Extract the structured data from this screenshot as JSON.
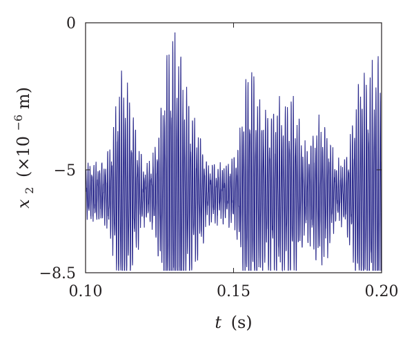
{
  "chart_data": {
    "type": "line",
    "title": "",
    "xlabel": {
      "symbol": "t",
      "unit": "(s)"
    },
    "ylabel": {
      "symbol": "x",
      "subscript": "2",
      "unit_prefix": "(×10",
      "unit_exponent": "−6",
      "unit_suffix": "m)"
    },
    "xlim": [
      0.1,
      0.2
    ],
    "ylim": [
      -8.5,
      0
    ],
    "x_ticks": [
      {
        "value": 0.1,
        "label": "0.10"
      },
      {
        "value": 0.15,
        "label": "0.15"
      },
      {
        "value": 0.2,
        "label": "0.20"
      }
    ],
    "y_ticks": [
      {
        "value": 0,
        "label": "0"
      },
      {
        "value": -5,
        "label": "−5"
      },
      {
        "value": -8.5,
        "label": "−8.5"
      }
    ],
    "grid": false,
    "legend": "none",
    "line_color": "#2b2a8c",
    "series": [
      {
        "signal_model": {
          "mean": -5.8,
          "carrier_frequency_hz": 1500,
          "beat_frequency_hz": 46,
          "base_amplitude": 1.0,
          "beat_amplitude": 1.5,
          "envelope_peaks": [
            {
              "t": 0.112,
              "amp": 1.8
            },
            {
              "t": 0.128,
              "amp": 2.8
            },
            {
              "t": 0.131,
              "amp": 2.7
            },
            {
              "t": 0.155,
              "amp": 2.2
            },
            {
              "t": 0.164,
              "amp": 2.0
            },
            {
              "t": 0.17,
              "amp": 2.2
            },
            {
              "t": 0.193,
              "amp": 2.8
            },
            {
              "t": 0.198,
              "amp": 2.4
            }
          ],
          "samples": 2000
        }
      }
    ]
  }
}
